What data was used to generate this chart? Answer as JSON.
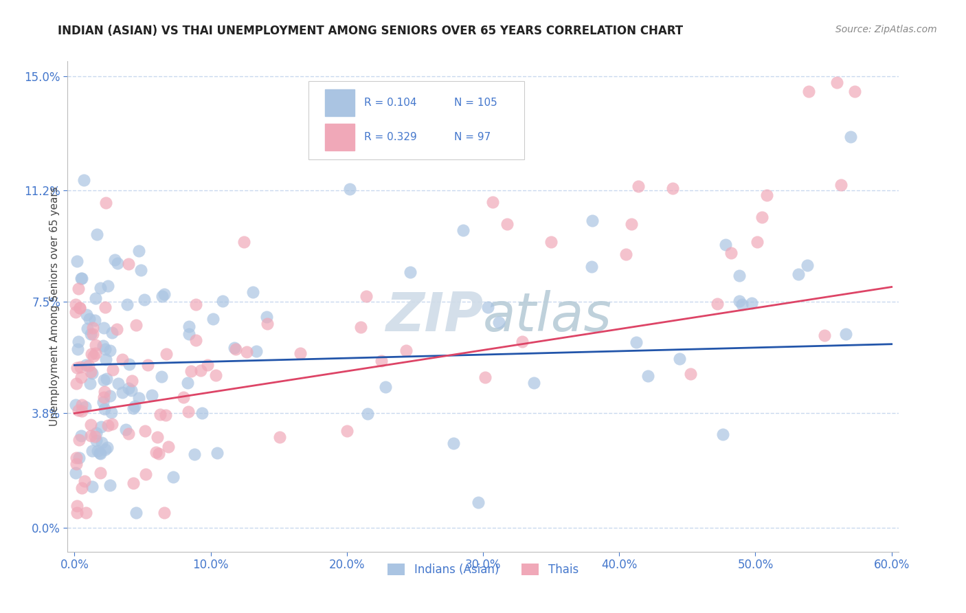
{
  "title": "INDIAN (ASIAN) VS THAI UNEMPLOYMENT AMONG SENIORS OVER 65 YEARS CORRELATION CHART",
  "source_text": "Source: ZipAtlas.com",
  "ylabel": "Unemployment Among Seniors over 65 years",
  "xlabel_ticks": [
    0.0,
    10.0,
    20.0,
    30.0,
    40.0,
    50.0,
    60.0
  ],
  "ytick_vals": [
    0.0,
    3.8,
    7.5,
    11.2,
    15.0
  ],
  "ytick_labels": [
    "0.0%",
    "3.8%",
    "7.5%",
    "11.2%",
    "15.0%"
  ],
  "xtick_labels": [
    "0.0%",
    "10.0%",
    "20.0%",
    "30.0%",
    "40.0%",
    "50.0%",
    "60.0%"
  ],
  "xlim": [
    0.0,
    60.0
  ],
  "ylim": [
    0.0,
    15.5
  ],
  "indian_color": "#aac4e2",
  "thai_color": "#f0a8b8",
  "indian_line_color": "#2255aa",
  "thai_line_color": "#dd4466",
  "title_color": "#222222",
  "axis_label_color": "#4477cc",
  "grid_color": "#c8d8ee",
  "watermark_color": "#d0dce8",
  "R_indian": 0.104,
  "N_indian": 105,
  "R_thai": 0.329,
  "N_thai": 97,
  "indian_trend_x0": 0.0,
  "indian_trend_y0": 5.4,
  "indian_trend_x1": 60.0,
  "indian_trend_y1": 6.1,
  "thai_trend_x0": 0.0,
  "thai_trend_y0": 3.8,
  "thai_trend_x1": 60.0,
  "thai_trend_y1": 8.0,
  "background_color": "#ffffff"
}
